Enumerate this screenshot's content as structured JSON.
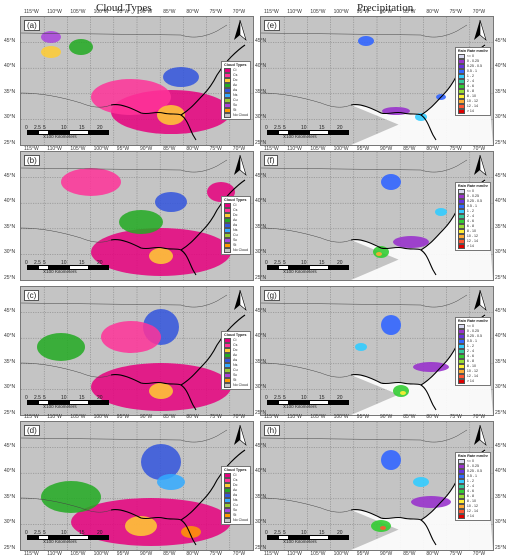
{
  "headers": {
    "left": "Cloud Types",
    "right": "Precipitation"
  },
  "panels_left": [
    {
      "letter": "(a)"
    },
    {
      "letter": "(b)"
    },
    {
      "letter": "(c)"
    },
    {
      "letter": "(d)"
    }
  ],
  "panels_right": [
    {
      "letter": "(e)"
    },
    {
      "letter": "(f)"
    },
    {
      "letter": "(g)"
    },
    {
      "letter": "(h)"
    }
  ],
  "lon_labels": [
    "115°W",
    "110°W",
    "105°W",
    "100°W",
    "95°W",
    "90°W",
    "85°W",
    "80°W",
    "75°W",
    "70°W"
  ],
  "lat_labels": [
    "45°N",
    "40°N",
    "35°N",
    "30°N",
    "25°N"
  ],
  "scale": {
    "ticks": [
      "0",
      "2.5",
      "5",
      "10",
      "15",
      "20"
    ],
    "unit": "X100 Kilometers"
  },
  "cloud_legend": {
    "title": "Cloud Types",
    "items": [
      {
        "label": "Ci",
        "color": "#e6007e"
      },
      {
        "label": "Cs",
        "color": "#ff3399"
      },
      {
        "label": "Dc",
        "color": "#ffcc33"
      },
      {
        "label": "Ac",
        "color": "#22aa22"
      },
      {
        "label": "As",
        "color": "#3355dd"
      },
      {
        "label": "Ns",
        "color": "#33aaff"
      },
      {
        "label": "Cu",
        "color": "#99cc33"
      },
      {
        "label": "Sc",
        "color": "#aa44dd"
      },
      {
        "label": "St",
        "color": "#ff9900"
      },
      {
        "label": "No Cloud",
        "color": "#c4c4c4"
      }
    ]
  },
  "rain_legend": {
    "title": "Rain Rate mm/hr",
    "items": [
      {
        "label": "<= 0",
        "color": "#d8d8f0"
      },
      {
        "label": "0 - 0.25",
        "color": "#9933cc"
      },
      {
        "label": "0.25 - 0.5",
        "color": "#6633dd"
      },
      {
        "label": "0.5 - 1",
        "color": "#3366ff"
      },
      {
        "label": "1 - 2",
        "color": "#33ccff"
      },
      {
        "label": "2 - 4",
        "color": "#33cc99"
      },
      {
        "label": "4 - 6",
        "color": "#33cc33"
      },
      {
        "label": "6 - 8",
        "color": "#99dd33"
      },
      {
        "label": "8 - 10",
        "color": "#ffee33"
      },
      {
        "label": "10 - 12",
        "color": "#ffaa33"
      },
      {
        "label": "12 - 14",
        "color": "#ff5533"
      },
      {
        "label": "> 14",
        "color": "#dd0000"
      }
    ]
  }
}
